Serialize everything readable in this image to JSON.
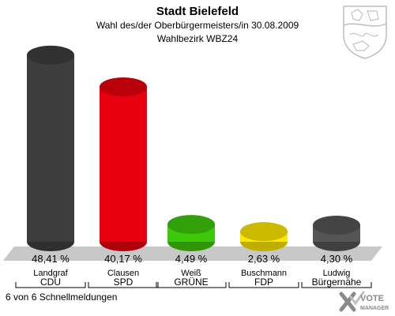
{
  "header": {
    "title": "Stadt Bielefeld",
    "subtitle": "Wahl des/der Oberbürgermeisters/in 30.08.2009",
    "district": "Wahlbezirk WBZ24"
  },
  "footer": {
    "status": "6 von 6 Schnellmeldungen"
  },
  "logo": {
    "text_line1": "VOTE",
    "text_line2": "MANAGER"
  },
  "colors": {
    "floor": "#c8c8c8",
    "underline": "#000000"
  },
  "chart_data": {
    "type": "bar",
    "title": "Stadt Bielefeld",
    "ylim": [
      0,
      50
    ],
    "categories": [
      "CDU",
      "SPD",
      "GRÜNE",
      "FDP",
      "Bürgernähe"
    ],
    "candidates": [
      "Landgraf",
      "Clausen",
      "Weiß",
      "Buschmann",
      "Ludwig"
    ],
    "values": [
      48.41,
      40.17,
      4.49,
      2.63,
      4.3
    ],
    "value_labels": [
      "48,41 %",
      "40,17 %",
      "4,49 %",
      "2,63 %",
      "4,30 %"
    ],
    "colors": [
      "#3d3d3d",
      "#e8000e",
      "#3ec80a",
      "#ffe800",
      "#555555"
    ],
    "grid": false,
    "legend": "none"
  }
}
